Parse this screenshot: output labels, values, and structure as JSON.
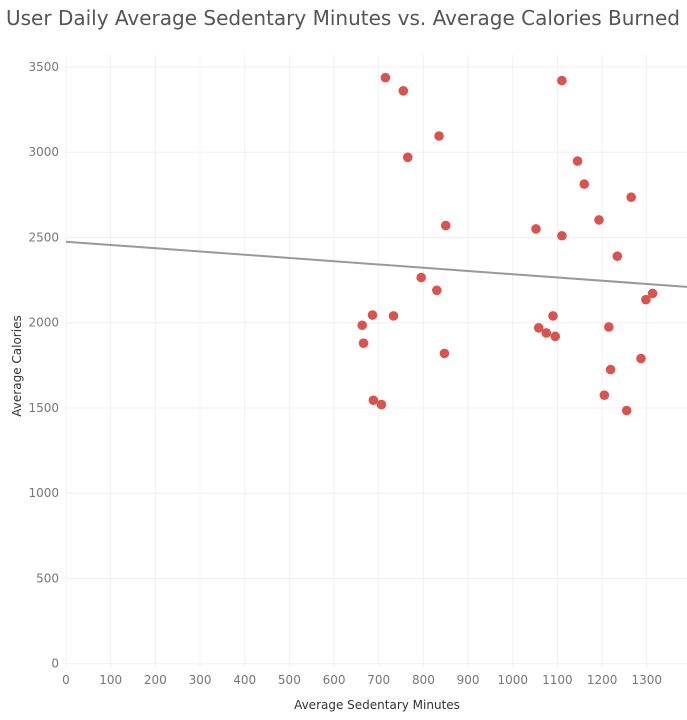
{
  "chart_data": {
    "type": "scatter",
    "title": "User Daily Average Sedentary Minutes vs. Average Calories Burned",
    "xlabel": "Average Sedentary Minutes",
    "ylabel": "Average Calories",
    "xlim": [
      0,
      1390
    ],
    "ylim": [
      -25,
      3570
    ],
    "x_ticks": [
      0,
      100,
      200,
      300,
      400,
      500,
      600,
      700,
      800,
      900,
      1000,
      1100,
      1200,
      1300
    ],
    "y_ticks": [
      0,
      500,
      1000,
      1500,
      2000,
      2500,
      3000,
      3500
    ],
    "grid": true,
    "point_color": "#d9534f",
    "trend_color": "#999999",
    "trend_line": {
      "x": [
        0,
        1390
      ],
      "y": [
        2475,
        2210
      ]
    },
    "points": [
      {
        "x": 715,
        "y": 3437
      },
      {
        "x": 755,
        "y": 3360
      },
      {
        "x": 1110,
        "y": 3420
      },
      {
        "x": 835,
        "y": 3095
      },
      {
        "x": 765,
        "y": 2970
      },
      {
        "x": 1145,
        "y": 2948
      },
      {
        "x": 1160,
        "y": 2813
      },
      {
        "x": 1265,
        "y": 2736
      },
      {
        "x": 1193,
        "y": 2603
      },
      {
        "x": 850,
        "y": 2570
      },
      {
        "x": 1052,
        "y": 2550
      },
      {
        "x": 1110,
        "y": 2510
      },
      {
        "x": 1234,
        "y": 2390
      },
      {
        "x": 795,
        "y": 2265
      },
      {
        "x": 830,
        "y": 2190
      },
      {
        "x": 1313,
        "y": 2172
      },
      {
        "x": 1298,
        "y": 2135
      },
      {
        "x": 686,
        "y": 2045
      },
      {
        "x": 733,
        "y": 2040
      },
      {
        "x": 1090,
        "y": 2040
      },
      {
        "x": 663,
        "y": 1985
      },
      {
        "x": 1058,
        "y": 1970
      },
      {
        "x": 1215,
        "y": 1975
      },
      {
        "x": 1075,
        "y": 1940
      },
      {
        "x": 1095,
        "y": 1920
      },
      {
        "x": 666,
        "y": 1880
      },
      {
        "x": 847,
        "y": 1820
      },
      {
        "x": 1287,
        "y": 1790
      },
      {
        "x": 1219,
        "y": 1725
      },
      {
        "x": 1205,
        "y": 1575
      },
      {
        "x": 688,
        "y": 1545
      },
      {
        "x": 706,
        "y": 1520
      },
      {
        "x": 1255,
        "y": 1485
      }
    ]
  }
}
